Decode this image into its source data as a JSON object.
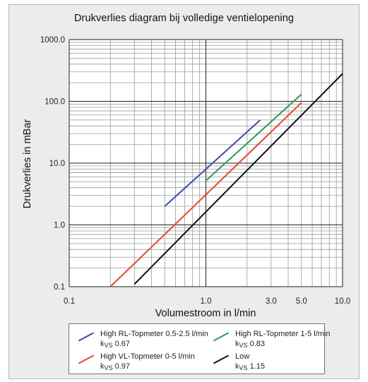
{
  "chart_data": {
    "type": "line",
    "title": "Drukverlies diagram bij volledige ventielopening",
    "xlabel": "Volumestroom in l/min",
    "ylabel": "Drukverlies in mBar",
    "xscale": "log",
    "yscale": "log",
    "xlim": [
      0.1,
      10.0
    ],
    "ylim": [
      0.1,
      1000.0
    ],
    "x_tick_labels": [
      "0.1",
      "1.0",
      "3.0",
      "5.0",
      "10.0"
    ],
    "x_ticks": [
      0.1,
      1.0,
      3.0,
      5.0,
      10.0
    ],
    "y_tick_labels": [
      "0.1",
      "1.0",
      "10.0",
      "100.0",
      "1000.0"
    ],
    "y_ticks": [
      0.1,
      1.0,
      10.0,
      100.0,
      1000.0
    ],
    "grid": true,
    "legend_position": "bottom",
    "series": [
      {
        "name": "High RL-Topmeter 0.5-2.5 l/min",
        "kvs_label": "k",
        "kvs_sub": "VS",
        "kvs_value": "0.67",
        "color": "#3a4fa3",
        "x": [
          0.5,
          2.5
        ],
        "y": [
          2.0,
          50.0
        ]
      },
      {
        "name": "High RL-Topmeter 1-5 l/min",
        "kvs_label": "k",
        "kvs_sub": "VS",
        "kvs_value": "0.83",
        "color": "#2e9a5a",
        "x": [
          1.0,
          5.0
        ],
        "y": [
          5.2,
          130.0
        ]
      },
      {
        "name": "High VL-Topmeter 0-5 l/min",
        "kvs_label": "k",
        "kvs_sub": "VS",
        "kvs_value": "0.97",
        "color": "#e04a2a",
        "x": [
          0.2,
          5.0
        ],
        "y": [
          0.1,
          95.0
        ]
      },
      {
        "name": "Low",
        "kvs_label": "k",
        "kvs_sub": "VS",
        "kvs_value": "1.15",
        "color": "#111111",
        "x": [
          0.3,
          10.0
        ],
        "y": [
          0.11,
          280.0
        ]
      }
    ]
  }
}
